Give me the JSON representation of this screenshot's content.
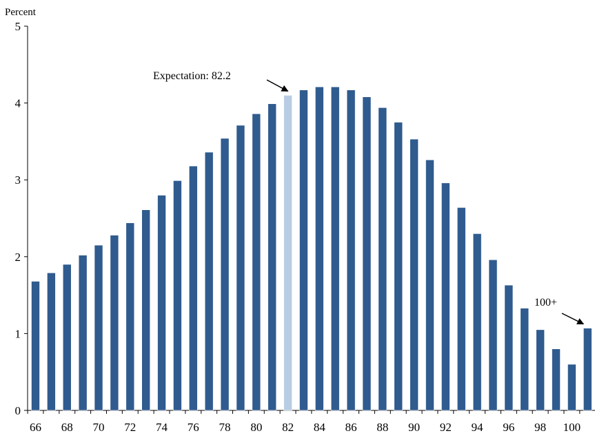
{
  "chart_data": {
    "type": "bar",
    "title": "",
    "xlabel": "",
    "ylabel": "Percent",
    "ylim": [
      0,
      5
    ],
    "yticks": [
      0,
      1,
      2,
      3,
      4,
      5
    ],
    "grid": false,
    "legend": "none",
    "colors": {
      "bar": "#2f5b8f",
      "highlight": "#b8cde3"
    },
    "highlight_category": "82",
    "categories": [
      "66",
      "67",
      "68",
      "69",
      "70",
      "71",
      "72",
      "73",
      "74",
      "75",
      "76",
      "77",
      "78",
      "79",
      "80",
      "81",
      "82",
      "83",
      "84",
      "85",
      "86",
      "87",
      "88",
      "89",
      "90",
      "91",
      "92",
      "93",
      "94",
      "95",
      "96",
      "97",
      "98",
      "99",
      "100",
      "101"
    ],
    "x_tick_labels": [
      "66",
      "68",
      "70",
      "72",
      "74",
      "76",
      "78",
      "80",
      "82",
      "84",
      "86",
      "88",
      "90",
      "92",
      "94",
      "96",
      "98",
      "100"
    ],
    "values": [
      1.68,
      1.79,
      1.9,
      2.02,
      2.15,
      2.28,
      2.44,
      2.61,
      2.8,
      2.99,
      3.18,
      3.36,
      3.54,
      3.71,
      3.86,
      3.99,
      4.1,
      4.17,
      4.21,
      4.21,
      4.17,
      4.08,
      3.94,
      3.75,
      3.53,
      3.26,
      2.96,
      2.64,
      2.3,
      1.96,
      1.63,
      1.33,
      1.05,
      0.8,
      0.6,
      1.07
    ],
    "annotations": [
      {
        "text": "Expectation: 82.2",
        "target_category": "82"
      },
      {
        "text": "100+",
        "target_category": "101"
      }
    ]
  }
}
